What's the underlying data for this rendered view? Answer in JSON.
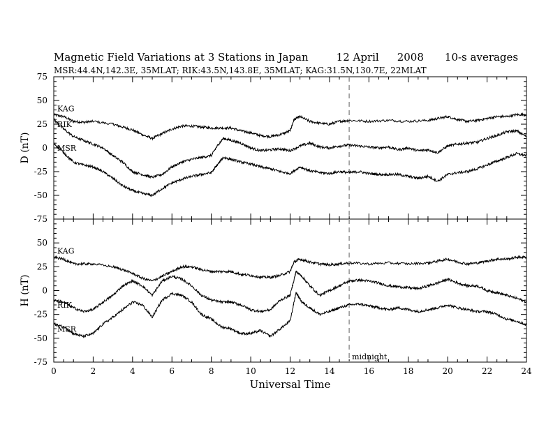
{
  "figure": {
    "title_parts": [
      "Magnetic Field Variations at 3 Stations in Japan",
      "12  April",
      "2008",
      "10-s averages"
    ],
    "subtitle": "MSR:44.4N,142.3E, 35MLAT;   RIK:43.5N,143.8E, 35MLAT;   KAG:31.5N,130.7E, 22MLAT",
    "midnight_label": "midnight",
    "colors": {
      "line": "#000000",
      "dashed_marker": "#9a9a9a",
      "background": "#ffffff"
    }
  },
  "chart_data": [
    {
      "type": "line",
      "ylabel": "D (nT)",
      "xlabel": "",
      "xlim": [
        0,
        24
      ],
      "ylim": [
        -75,
        75
      ],
      "xticks": [
        0,
        2,
        4,
        6,
        8,
        10,
        12,
        14,
        16,
        18,
        20,
        22,
        24
      ],
      "yticks": [
        75,
        50,
        25,
        0,
        -25,
        -50,
        -75
      ],
      "marker_x": 15,
      "series": [
        {
          "name": "KAG",
          "x": [
            0,
            0.5,
            1,
            1.5,
            2,
            3,
            3.5,
            4,
            4.5,
            5,
            5.5,
            6,
            6.5,
            7,
            7.5,
            8,
            8.5,
            9,
            9.5,
            10,
            10.5,
            11,
            11.5,
            12,
            12.2,
            12.5,
            13,
            13.5,
            14,
            14.5,
            15,
            16,
            17,
            18,
            19,
            19.5,
            20,
            20.5,
            21,
            21.5,
            22,
            22.5,
            23,
            23.5,
            24
          ],
          "y": [
            35,
            33,
            28,
            27,
            28,
            25,
            22,
            19,
            14,
            10,
            15,
            20,
            23,
            23,
            22,
            21,
            21,
            21,
            18,
            16,
            13,
            12,
            14,
            18,
            30,
            33,
            28,
            26,
            25,
            28,
            29,
            28,
            29,
            28,
            29,
            31,
            33,
            30,
            28,
            29,
            31,
            33,
            33,
            35,
            35
          ]
        },
        {
          "name": "RIK",
          "x": [
            0,
            0.5,
            1,
            1.5,
            2,
            2.5,
            3,
            3.5,
            4,
            4.5,
            5,
            5.5,
            6,
            6.5,
            7,
            7.5,
            8,
            8.3,
            8.6,
            9,
            9.5,
            10,
            10.5,
            11,
            11.5,
            12,
            12.5,
            13,
            13.5,
            14,
            14.5,
            15,
            15.5,
            16,
            16.5,
            17,
            17.5,
            18,
            18.5,
            19,
            19.5,
            20,
            20.5,
            21,
            21.5,
            22,
            22.5,
            23,
            23.5,
            24
          ],
          "y": [
            30,
            20,
            12,
            8,
            4,
            0,
            -8,
            -15,
            -25,
            -28,
            -31,
            -28,
            -20,
            -15,
            -12,
            -10,
            -8,
            2,
            10,
            8,
            5,
            0,
            -3,
            -2,
            -1,
            -3,
            2,
            5,
            1,
            0,
            2,
            3,
            2,
            1,
            0,
            1,
            -2,
            0,
            -3,
            -2,
            -5,
            2,
            4,
            5,
            6,
            10,
            13,
            17,
            18,
            12
          ]
        },
        {
          "name": "MSR",
          "x": [
            0,
            0.5,
            1,
            1.5,
            2,
            2.5,
            3,
            3.5,
            4,
            4.5,
            5,
            5.5,
            6,
            6.5,
            7,
            7.5,
            8,
            8.3,
            8.6,
            9,
            9.5,
            10,
            10.5,
            11,
            11.5,
            12,
            12.5,
            13,
            13.5,
            14,
            14.5,
            15,
            15.5,
            16,
            16.5,
            17,
            17.5,
            18,
            18.5,
            19,
            19.5,
            20,
            20.5,
            21,
            21.5,
            22,
            22.5,
            23,
            23.5,
            24
          ],
          "y": [
            5,
            -5,
            -15,
            -18,
            -20,
            -25,
            -32,
            -40,
            -45,
            -48,
            -50,
            -43,
            -37,
            -33,
            -30,
            -28,
            -26,
            -18,
            -10,
            -12,
            -15,
            -17,
            -20,
            -22,
            -25,
            -27,
            -20,
            -24,
            -26,
            -27,
            -25,
            -26,
            -25,
            -27,
            -28,
            -28,
            -28,
            -30,
            -32,
            -30,
            -35,
            -28,
            -26,
            -25,
            -22,
            -18,
            -14,
            -10,
            -6,
            -8
          ]
        }
      ]
    },
    {
      "type": "line",
      "ylabel": "H (nT)",
      "xlabel": "Universal Time",
      "xlim": [
        0,
        24
      ],
      "ylim": [
        -75,
        75
      ],
      "xticks": [
        0,
        2,
        4,
        6,
        8,
        10,
        12,
        14,
        16,
        18,
        20,
        22,
        24
      ],
      "yticks": [
        75,
        50,
        25,
        0,
        -25,
        -50,
        -75
      ],
      "marker_x": 15,
      "series": [
        {
          "name": "KAG",
          "x": [
            0,
            0.5,
            1,
            1.5,
            2,
            3,
            3.5,
            4,
            4.5,
            5,
            5.5,
            6,
            6.5,
            7,
            7.5,
            8,
            8.5,
            9,
            9.5,
            10,
            10.5,
            11,
            11.5,
            12,
            12.2,
            12.5,
            13,
            13.5,
            14,
            14.5,
            15,
            16,
            17,
            18,
            19,
            19.5,
            20,
            20.5,
            21,
            21.5,
            22,
            22.5,
            23,
            23.5,
            24
          ],
          "y": [
            35,
            33,
            28,
            28,
            28,
            25,
            22,
            18,
            13,
            10,
            15,
            20,
            25,
            25,
            22,
            20,
            20,
            20,
            17,
            16,
            14,
            14,
            16,
            20,
            30,
            33,
            30,
            28,
            27,
            28,
            29,
            28,
            29,
            28,
            29,
            31,
            33,
            30,
            28,
            29,
            31,
            33,
            33,
            35,
            35
          ]
        },
        {
          "name": "RIK",
          "x": [
            0,
            0.5,
            1,
            1.5,
            2,
            2.5,
            3,
            3.5,
            4,
            4.5,
            5,
            5.5,
            6,
            6.5,
            7,
            7.5,
            8,
            8.5,
            9,
            9.5,
            10,
            10.5,
            11,
            11.5,
            12,
            12.3,
            12.6,
            13,
            13.5,
            14,
            14.5,
            15,
            15.5,
            16,
            16.5,
            17,
            17.5,
            18,
            18.5,
            19,
            19.5,
            20,
            20.5,
            21,
            21.5,
            22,
            22.5,
            23,
            23.5,
            24
          ],
          "y": [
            -10,
            -12,
            -18,
            -22,
            -20,
            -12,
            -5,
            5,
            10,
            5,
            -5,
            10,
            15,
            12,
            5,
            -5,
            -10,
            -12,
            -12,
            -15,
            -20,
            -22,
            -20,
            -10,
            -5,
            20,
            15,
            5,
            -5,
            0,
            5,
            10,
            11,
            10,
            8,
            5,
            4,
            3,
            2,
            5,
            8,
            12,
            8,
            5,
            5,
            0,
            -2,
            -5,
            -8,
            -12
          ]
        },
        {
          "name": "MSR",
          "x": [
            0,
            0.5,
            1,
            1.5,
            2,
            2.5,
            3,
            3.5,
            4,
            4.5,
            5,
            5.5,
            6,
            6.5,
            7,
            7.5,
            8,
            8.5,
            9,
            9.5,
            10,
            10.5,
            11,
            11.5,
            12,
            12.3,
            12.6,
            13,
            13.5,
            14,
            14.5,
            15,
            15.5,
            16,
            16.5,
            17,
            17.5,
            18,
            18.5,
            19,
            19.5,
            20,
            20.5,
            21,
            21.5,
            22,
            22.5,
            23,
            23.5,
            24
          ],
          "y": [
            -35,
            -38,
            -45,
            -48,
            -45,
            -35,
            -28,
            -20,
            -12,
            -15,
            -28,
            -10,
            -3,
            -5,
            -12,
            -25,
            -30,
            -38,
            -40,
            -45,
            -45,
            -42,
            -48,
            -40,
            -32,
            -2,
            -12,
            -18,
            -25,
            -22,
            -18,
            -15,
            -14,
            -16,
            -18,
            -20,
            -18,
            -20,
            -22,
            -20,
            -18,
            -15,
            -18,
            -20,
            -22,
            -22,
            -25,
            -30,
            -32,
            -36
          ]
        }
      ]
    }
  ]
}
